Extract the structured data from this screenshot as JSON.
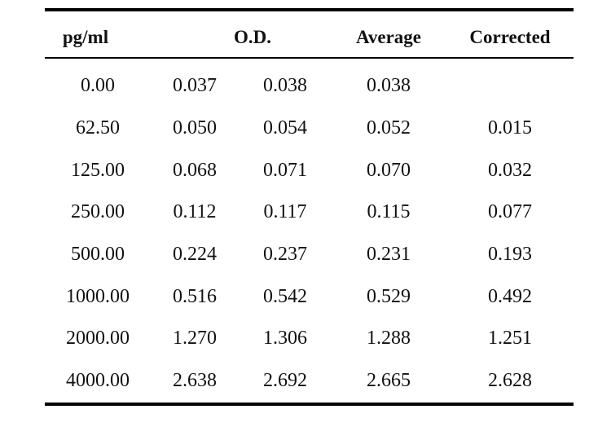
{
  "table": {
    "headers": {
      "conc": "pg/ml",
      "od": "O.D.",
      "average": "Average",
      "corrected": "Corrected"
    },
    "rows": [
      {
        "conc": "0.00",
        "od1": "0.037",
        "od2": "0.038",
        "average": "0.038",
        "corrected": ""
      },
      {
        "conc": "62.50",
        "od1": "0.050",
        "od2": "0.054",
        "average": "0.052",
        "corrected": "0.015"
      },
      {
        "conc": "125.00",
        "od1": "0.068",
        "od2": "0.071",
        "average": "0.070",
        "corrected": "0.032"
      },
      {
        "conc": "250.00",
        "od1": "0.112",
        "od2": "0.117",
        "average": "0.115",
        "corrected": "0.077"
      },
      {
        "conc": "500.00",
        "od1": "0.224",
        "od2": "0.237",
        "average": "0.231",
        "corrected": "0.193"
      },
      {
        "conc": "1000.00",
        "od1": "0.516",
        "od2": "0.542",
        "average": "0.529",
        "corrected": "0.492"
      },
      {
        "conc": "2000.00",
        "od1": "1.270",
        "od2": "1.306",
        "average": "1.288",
        "corrected": "1.251"
      },
      {
        "conc": "4000.00",
        "od1": "2.638",
        "od2": "2.692",
        "average": "2.665",
        "corrected": "2.628"
      }
    ]
  }
}
